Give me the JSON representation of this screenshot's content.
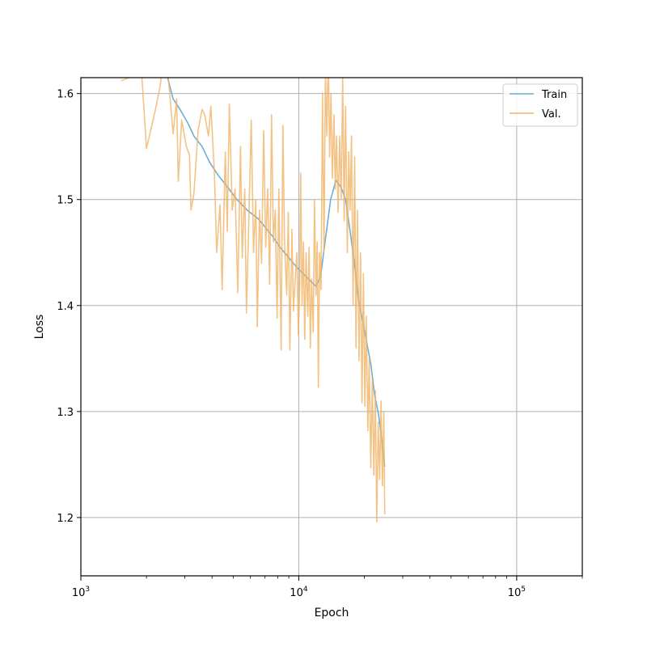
{
  "chart_data": {
    "type": "line",
    "title": "",
    "xlabel": "Epoch",
    "ylabel": "Loss",
    "xscale": "log",
    "xlim": [
      1000,
      200000
    ],
    "ylim": [
      1.145,
      1.615
    ],
    "grid": true,
    "legend": "top-right",
    "x_ticks": [
      {
        "value": 1000,
        "base": "10",
        "exp": "3"
      },
      {
        "value": 10000,
        "base": "10",
        "exp": "4"
      },
      {
        "value": 100000,
        "base": "10",
        "exp": "5"
      }
    ],
    "y_ticks": [
      {
        "value": 1.2,
        "label": "1.2"
      },
      {
        "value": 1.3,
        "label": "1.3"
      },
      {
        "value": 1.4,
        "label": "1.4"
      },
      {
        "value": 1.5,
        "label": "1.5"
      },
      {
        "value": 1.6,
        "label": "1.6"
      }
    ],
    "series": [
      {
        "name": "Train",
        "color": "#6baed6",
        "points": [
          [
            2500,
            1.615
          ],
          [
            2650,
            1.595
          ],
          [
            2850,
            1.585
          ],
          [
            3100,
            1.572
          ],
          [
            3300,
            1.56
          ],
          [
            3600,
            1.55
          ],
          [
            3900,
            1.535
          ],
          [
            4300,
            1.522
          ],
          [
            4700,
            1.512
          ],
          [
            5200,
            1.5
          ],
          [
            5800,
            1.49
          ],
          [
            6500,
            1.482
          ],
          [
            7000,
            1.474
          ],
          [
            7600,
            1.465
          ],
          [
            8200,
            1.455
          ],
          [
            9000,
            1.445
          ],
          [
            9700,
            1.437
          ],
          [
            10500,
            1.43
          ],
          [
            11200,
            1.424
          ],
          [
            12000,
            1.418
          ],
          [
            12600,
            1.428
          ],
          [
            13200,
            1.46
          ],
          [
            14000,
            1.5
          ],
          [
            14800,
            1.518
          ],
          [
            15600,
            1.512
          ],
          [
            16400,
            1.5
          ],
          [
            17200,
            1.47
          ],
          [
            18000,
            1.44
          ],
          [
            18800,
            1.405
          ],
          [
            19700,
            1.385
          ],
          [
            20500,
            1.365
          ],
          [
            21400,
            1.345
          ],
          [
            22300,
            1.315
          ],
          [
            23200,
            1.298
          ],
          [
            24000,
            1.275
          ],
          [
            24800,
            1.248
          ]
        ]
      },
      {
        "name": "Val.",
        "color": "#f0b466",
        "points": [
          [
            1530,
            1.612
          ],
          [
            1900,
            1.62
          ],
          [
            2000,
            1.548
          ],
          [
            2200,
            1.585
          ],
          [
            2300,
            1.605
          ],
          [
            2450,
            1.64
          ],
          [
            2550,
            1.603
          ],
          [
            2650,
            1.562
          ],
          [
            2750,
            1.595
          ],
          [
            2800,
            1.517
          ],
          [
            2900,
            1.575
          ],
          [
            3050,
            1.55
          ],
          [
            3150,
            1.542
          ],
          [
            3200,
            1.49
          ],
          [
            3300,
            1.505
          ],
          [
            3450,
            1.565
          ],
          [
            3600,
            1.585
          ],
          [
            3700,
            1.58
          ],
          [
            3850,
            1.56
          ],
          [
            3950,
            1.588
          ],
          [
            4100,
            1.525
          ],
          [
            4200,
            1.45
          ],
          [
            4350,
            1.495
          ],
          [
            4450,
            1.415
          ],
          [
            4600,
            1.545
          ],
          [
            4700,
            1.47
          ],
          [
            4800,
            1.59
          ],
          [
            4950,
            1.49
          ],
          [
            5100,
            1.51
          ],
          [
            5250,
            1.412
          ],
          [
            5400,
            1.55
          ],
          [
            5500,
            1.445
          ],
          [
            5650,
            1.51
          ],
          [
            5750,
            1.393
          ],
          [
            5900,
            1.48
          ],
          [
            6050,
            1.575
          ],
          [
            6200,
            1.45
          ],
          [
            6350,
            1.5
          ],
          [
            6450,
            1.38
          ],
          [
            6600,
            1.49
          ],
          [
            6750,
            1.44
          ],
          [
            6900,
            1.565
          ],
          [
            7050,
            1.455
          ],
          [
            7200,
            1.51
          ],
          [
            7350,
            1.42
          ],
          [
            7500,
            1.58
          ],
          [
            7650,
            1.46
          ],
          [
            7800,
            1.49
          ],
          [
            7950,
            1.388
          ],
          [
            8100,
            1.51
          ],
          [
            8300,
            1.358
          ],
          [
            8450,
            1.57
          ],
          [
            8600,
            1.46
          ],
          [
            8800,
            1.41
          ],
          [
            8950,
            1.488
          ],
          [
            9100,
            1.358
          ],
          [
            9300,
            1.472
          ],
          [
            9450,
            1.395
          ],
          [
            9600,
            1.42
          ],
          [
            9800,
            1.45
          ],
          [
            9950,
            1.372
          ],
          [
            10100,
            1.42
          ],
          [
            10200,
            1.525
          ],
          [
            10350,
            1.4
          ],
          [
            10500,
            1.46
          ],
          [
            10650,
            1.368
          ],
          [
            10800,
            1.45
          ],
          [
            11000,
            1.39
          ],
          [
            11150,
            1.455
          ],
          [
            11300,
            1.36
          ],
          [
            11450,
            1.425
          ],
          [
            11650,
            1.375
          ],
          [
            11800,
            1.5
          ],
          [
            12000,
            1.41
          ],
          [
            12150,
            1.46
          ],
          [
            12300,
            1.323
          ],
          [
            12450,
            1.45
          ],
          [
            12650,
            1.415
          ],
          [
            12850,
            1.6
          ],
          [
            13050,
            1.45
          ],
          [
            13250,
            1.62
          ],
          [
            13450,
            1.56
          ],
          [
            13650,
            1.64
          ],
          [
            13850,
            1.54
          ],
          [
            14050,
            1.6
          ],
          [
            14250,
            1.52
          ],
          [
            14500,
            1.58
          ],
          [
            14700,
            1.51
          ],
          [
            14900,
            1.56
          ],
          [
            15150,
            1.488
          ],
          [
            15400,
            1.56
          ],
          [
            15650,
            1.5
          ],
          [
            15900,
            1.615
          ],
          [
            16150,
            1.48
          ],
          [
            16400,
            1.588
          ],
          [
            16700,
            1.45
          ],
          [
            16950,
            1.545
          ],
          [
            17200,
            1.49
          ],
          [
            17450,
            1.56
          ],
          [
            17750,
            1.4
          ],
          [
            18050,
            1.54
          ],
          [
            18300,
            1.36
          ],
          [
            18600,
            1.49
          ],
          [
            18900,
            1.348
          ],
          [
            19200,
            1.45
          ],
          [
            19500,
            1.308
          ],
          [
            19800,
            1.43
          ],
          [
            20100,
            1.305
          ],
          [
            20400,
            1.39
          ],
          [
            20750,
            1.282
          ],
          [
            21050,
            1.35
          ],
          [
            21400,
            1.247
          ],
          [
            21750,
            1.33
          ],
          [
            22100,
            1.24
          ],
          [
            22450,
            1.32
          ],
          [
            22800,
            1.196
          ],
          [
            23150,
            1.29
          ],
          [
            23500,
            1.236
          ],
          [
            23850,
            1.31
          ],
          [
            24200,
            1.23
          ],
          [
            24550,
            1.3
          ],
          [
            24800,
            1.203
          ]
        ]
      }
    ]
  }
}
